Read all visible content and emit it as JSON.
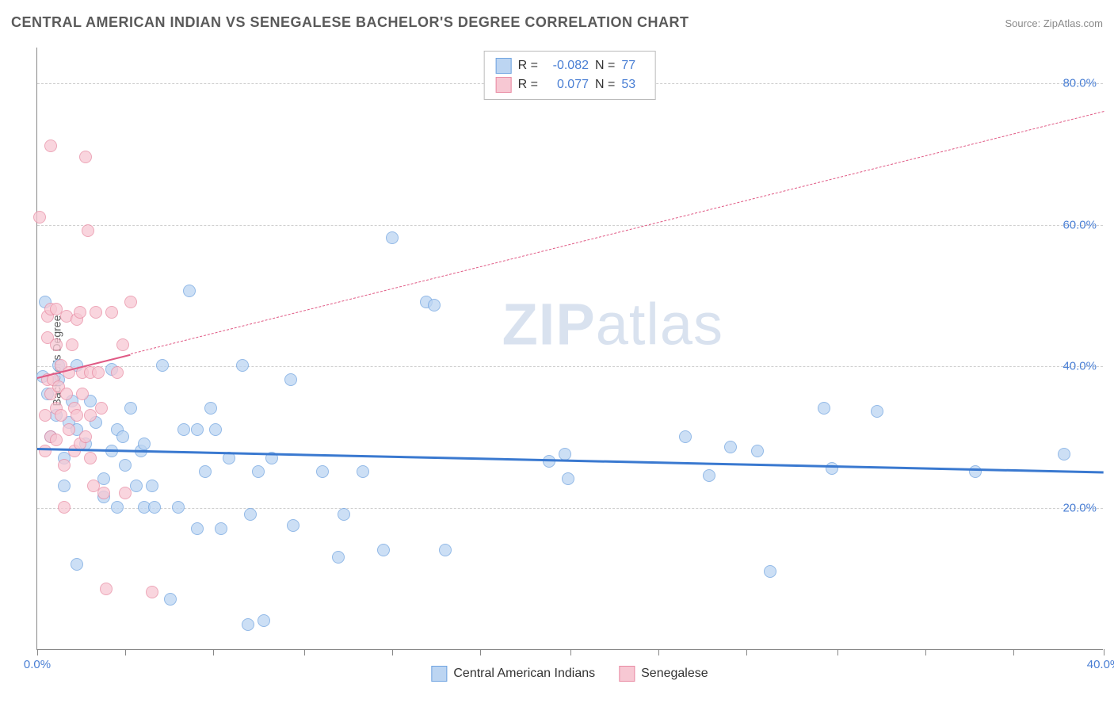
{
  "header": {
    "title": "CENTRAL AMERICAN INDIAN VS SENEGALESE BACHELOR'S DEGREE CORRELATION CHART",
    "source": "Source: ZipAtlas.com"
  },
  "watermark": {
    "zip": "ZIP",
    "atlas": "atlas"
  },
  "chart": {
    "type": "scatter",
    "y_axis_label": "Bachelor's Degree",
    "background_color": "#ffffff",
    "grid_color": "#d0d0d0",
    "axis_color": "#888888",
    "label_color": "#4a7fd4",
    "xlim": [
      0,
      40
    ],
    "ylim": [
      0,
      85
    ],
    "y_ticks": [
      {
        "v": 20,
        "label": "20.0%"
      },
      {
        "v": 40,
        "label": "40.0%"
      },
      {
        "v": 60,
        "label": "60.0%"
      },
      {
        "v": 80,
        "label": "80.0%"
      }
    ],
    "x_ticks_minor": [
      0,
      3.3,
      6.6,
      10,
      13.3,
      16.6,
      20,
      23.3,
      26.6,
      30,
      33.3,
      36.6,
      40
    ],
    "x_tick_labels": [
      {
        "v": 0,
        "label": "0.0%"
      },
      {
        "v": 40,
        "label": "40.0%"
      }
    ],
    "series": [
      {
        "name": "Central American Indians",
        "fill": "#bcd5f2",
        "stroke": "#6fa3e0",
        "trend_fill": "#3a79d0",
        "trend_dash": false,
        "r": "-0.082",
        "n": "77",
        "trend": {
          "x1": 0,
          "y1": 28.5,
          "x2": 40,
          "y2": 25.2
        },
        "points": [
          [
            0.2,
            38.5
          ],
          [
            0.3,
            49
          ],
          [
            0.4,
            36
          ],
          [
            0.5,
            30
          ],
          [
            0.7,
            33
          ],
          [
            0.8,
            40
          ],
          [
            0.8,
            38
          ],
          [
            1.0,
            27
          ],
          [
            1.0,
            23
          ],
          [
            1.2,
            32
          ],
          [
            1.3,
            35
          ],
          [
            1.5,
            31
          ],
          [
            1.5,
            40
          ],
          [
            1.5,
            12
          ],
          [
            1.8,
            29
          ],
          [
            2.0,
            35
          ],
          [
            2.2,
            32
          ],
          [
            2.5,
            24
          ],
          [
            2.5,
            21.5
          ],
          [
            2.8,
            28
          ],
          [
            2.8,
            39.5
          ],
          [
            3.0,
            31
          ],
          [
            3.0,
            20
          ],
          [
            3.2,
            30
          ],
          [
            3.3,
            26
          ],
          [
            3.5,
            34
          ],
          [
            3.7,
            23
          ],
          [
            3.9,
            28
          ],
          [
            4.0,
            29
          ],
          [
            4.0,
            20
          ],
          [
            4.3,
            23
          ],
          [
            4.4,
            20
          ],
          [
            4.7,
            40
          ],
          [
            5.0,
            7
          ],
          [
            5.3,
            20
          ],
          [
            5.5,
            31
          ],
          [
            5.7,
            50.5
          ],
          [
            6.0,
            17
          ],
          [
            6.0,
            31
          ],
          [
            6.3,
            25
          ],
          [
            6.5,
            34
          ],
          [
            6.7,
            31
          ],
          [
            6.9,
            17
          ],
          [
            7.2,
            27
          ],
          [
            7.7,
            40
          ],
          [
            7.9,
            3.5
          ],
          [
            8.0,
            19
          ],
          [
            8.3,
            25
          ],
          [
            8.5,
            4
          ],
          [
            8.8,
            27
          ],
          [
            9.5,
            38
          ],
          [
            9.6,
            17.5
          ],
          [
            10.7,
            25
          ],
          [
            11.3,
            13
          ],
          [
            11.5,
            19
          ],
          [
            12.2,
            25
          ],
          [
            13.0,
            14
          ],
          [
            13.3,
            58
          ],
          [
            14.6,
            49
          ],
          [
            14.9,
            48.5
          ],
          [
            15.3,
            14
          ],
          [
            19.2,
            26.5
          ],
          [
            19.8,
            27.5
          ],
          [
            19.9,
            24
          ],
          [
            24.3,
            30
          ],
          [
            25.2,
            24.5
          ],
          [
            26.0,
            28.5
          ],
          [
            27.0,
            28
          ],
          [
            27.5,
            11
          ],
          [
            29.5,
            34
          ],
          [
            29.8,
            25.5
          ],
          [
            31.5,
            33.5
          ],
          [
            35.2,
            25
          ],
          [
            38.5,
            27.5
          ]
        ]
      },
      {
        "name": "Senegalese",
        "fill": "#f7c8d3",
        "stroke": "#e88aa2",
        "trend_fill": "#e05a85",
        "trend_dash": true,
        "r": "0.077",
        "n": "53",
        "trend": {
          "x1": 0,
          "y1": 38.5,
          "x2": 40,
          "y2": 76
        },
        "trend_solid_until": 3.5,
        "points": [
          [
            0.1,
            61
          ],
          [
            0.3,
            33
          ],
          [
            0.3,
            28
          ],
          [
            0.4,
            47
          ],
          [
            0.4,
            44
          ],
          [
            0.4,
            38
          ],
          [
            0.5,
            71
          ],
          [
            0.5,
            48
          ],
          [
            0.5,
            36
          ],
          [
            0.5,
            30
          ],
          [
            0.6,
            38
          ],
          [
            0.7,
            48
          ],
          [
            0.7,
            43
          ],
          [
            0.7,
            34
          ],
          [
            0.7,
            29.5
          ],
          [
            0.8,
            37
          ],
          [
            0.9,
            40
          ],
          [
            0.9,
            33
          ],
          [
            1.0,
            20
          ],
          [
            1.0,
            26
          ],
          [
            1.1,
            47
          ],
          [
            1.1,
            36
          ],
          [
            1.2,
            39
          ],
          [
            1.2,
            31
          ],
          [
            1.3,
            43
          ],
          [
            1.4,
            34
          ],
          [
            1.4,
            28
          ],
          [
            1.5,
            46.5
          ],
          [
            1.5,
            33
          ],
          [
            1.6,
            47.5
          ],
          [
            1.6,
            29
          ],
          [
            1.7,
            36
          ],
          [
            1.7,
            39
          ],
          [
            1.8,
            69.5
          ],
          [
            1.8,
            30
          ],
          [
            1.9,
            59
          ],
          [
            2.0,
            39
          ],
          [
            2.0,
            33
          ],
          [
            2.0,
            27
          ],
          [
            2.1,
            23
          ],
          [
            2.2,
            47.5
          ],
          [
            2.3,
            39
          ],
          [
            2.4,
            34
          ],
          [
            2.5,
            22
          ],
          [
            2.6,
            8.5
          ],
          [
            2.8,
            47.5
          ],
          [
            3.0,
            39
          ],
          [
            3.2,
            43
          ],
          [
            3.3,
            22
          ],
          [
            3.5,
            49
          ],
          [
            4.3,
            8
          ]
        ]
      }
    ],
    "legend": {
      "series1_label": "Central American Indians",
      "series2_label": "Senegalese"
    },
    "stats_box": {
      "r_label": "R  =",
      "n_label": "N  ="
    }
  }
}
